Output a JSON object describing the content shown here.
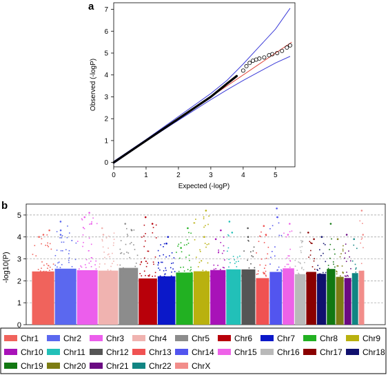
{
  "panel_a": {
    "label": "a"
  },
  "panel_b": {
    "label": "b"
  },
  "chart_data": [
    {
      "type": "scatter",
      "panel": "a",
      "xlabel": "Expected (-logP)",
      "ylabel": "Observed (-logP)",
      "xlim": [
        0,
        5.6
      ],
      "ylim": [
        -0.2,
        7.3
      ],
      "xticks": [
        "0",
        "1",
        "2",
        "3",
        "4",
        "5"
      ],
      "yticks": [
        "0",
        "1",
        "2",
        "3",
        "4",
        "5",
        "6",
        "7"
      ],
      "qq_points": [
        [
          0.0,
          0.0
        ],
        [
          0.5,
          0.5
        ],
        [
          1.0,
          1.0
        ],
        [
          1.5,
          1.5
        ],
        [
          2.0,
          2.0
        ],
        [
          2.5,
          2.5
        ],
        [
          3.0,
          3.0
        ],
        [
          3.5,
          3.6
        ],
        [
          3.8,
          3.95
        ],
        [
          4.0,
          4.2
        ],
        [
          4.1,
          4.4
        ],
        [
          4.2,
          4.55
        ],
        [
          4.3,
          4.65
        ],
        [
          4.4,
          4.7
        ],
        [
          4.5,
          4.75
        ],
        [
          4.65,
          4.8
        ],
        [
          4.8,
          4.9
        ],
        [
          4.9,
          4.95
        ],
        [
          5.05,
          5.0
        ],
        [
          5.2,
          5.1
        ],
        [
          5.35,
          5.25
        ],
        [
          5.45,
          5.35
        ]
      ],
      "expected_line": [
        [
          0,
          0
        ],
        [
          5.5,
          5.5
        ]
      ],
      "upper_band": [
        [
          0,
          0.05
        ],
        [
          1,
          1.05
        ],
        [
          2,
          2.1
        ],
        [
          3,
          3.15
        ],
        [
          3.5,
          3.75
        ],
        [
          4,
          4.5
        ],
        [
          4.5,
          5.3
        ],
        [
          5,
          6.1
        ],
        [
          5.45,
          7.05
        ]
      ],
      "lower_band": [
        [
          0,
          -0.05
        ],
        [
          1,
          0.97
        ],
        [
          2,
          1.93
        ],
        [
          3,
          2.87
        ],
        [
          3.5,
          3.32
        ],
        [
          4,
          3.75
        ],
        [
          4.5,
          4.15
        ],
        [
          5,
          4.55
        ],
        [
          5.45,
          4.85
        ]
      ],
      "colors": {
        "points": "#000000",
        "expected": "#e0463a",
        "band": "#3a3ad8"
      }
    },
    {
      "type": "scatter",
      "panel": "b",
      "subtype": "manhattan",
      "ylabel": "-log10(P)",
      "ylim": [
        0,
        5.5
      ],
      "yticks": [
        "0",
        "1",
        "2",
        "3",
        "4",
        "5"
      ],
      "grid": true,
      "chromosomes": [
        {
          "name": "Chr1",
          "color": "#f0635c",
          "max": 4.3,
          "hits": [
            4.3,
            4.0,
            4.1
          ]
        },
        {
          "name": "Chr2",
          "color": "#5b68ef",
          "max": 4.7,
          "hits": [
            4.3,
            4.7,
            4.1
          ]
        },
        {
          "name": "Chr3",
          "color": "#ec5eec",
          "max": 5.1,
          "hits": [
            5.1,
            4.9,
            4.6
          ]
        },
        {
          "name": "Chr4",
          "color": "#f0b3b0",
          "max": 4.4,
          "hits": [
            4.4,
            4.1
          ]
        },
        {
          "name": "Chr5",
          "color": "#8c8c8c",
          "max": 4.6,
          "hits": [
            4.6,
            4.3
          ]
        },
        {
          "name": "Chr6",
          "color": "#b8000a",
          "max": 4.9,
          "hits": [
            4.9,
            4.6
          ]
        },
        {
          "name": "Chr7",
          "color": "#0b18c9",
          "max": 4.0,
          "hits": [
            4.0,
            3.7
          ]
        },
        {
          "name": "Chr8",
          "color": "#22b122",
          "max": 4.4,
          "hits": [
            4.4,
            3.5
          ]
        },
        {
          "name": "Chr9",
          "color": "#b9b10f",
          "max": 5.2,
          "hits": [
            5.2,
            4.0
          ]
        },
        {
          "name": "Chr10",
          "color": "#a812b8",
          "max": 4.3,
          "hits": [
            4.3,
            3.9
          ]
        },
        {
          "name": "Chr11",
          "color": "#22c0b8",
          "max": 4.7,
          "hits": [
            4.7,
            4.2
          ]
        },
        {
          "name": "Chr12",
          "color": "#555555",
          "max": 4.4,
          "hits": [
            4.4,
            4.0
          ]
        },
        {
          "name": "Chr13",
          "color": "#f05252",
          "max": 4.5,
          "hits": [
            4.5,
            4.1
          ]
        },
        {
          "name": "Chr14",
          "color": "#5255ef",
          "max": 5.3,
          "hits": [
            5.3,
            4.9
          ]
        },
        {
          "name": "Chr15",
          "color": "#ee62e8",
          "max": 4.6,
          "hits": [
            4.6,
            4.1
          ]
        },
        {
          "name": "Chr16",
          "color": "#b9b9b9",
          "max": 4.2,
          "hits": [
            4.2,
            3.8
          ]
        },
        {
          "name": "Chr17",
          "color": "#8a0000",
          "max": 4.2,
          "hits": [
            4.2,
            3.9
          ]
        },
        {
          "name": "Chr18",
          "color": "#10106e",
          "max": 4.0,
          "hits": [
            4.0
          ]
        },
        {
          "name": "Chr19",
          "color": "#127812",
          "max": 4.6,
          "hits": [
            4.6
          ]
        },
        {
          "name": "Chr20",
          "color": "#7c7c13",
          "max": 3.9,
          "hits": [
            3.9
          ]
        },
        {
          "name": "Chr21",
          "color": "#6a0a82",
          "max": 4.1,
          "hits": [
            4.1
          ]
        },
        {
          "name": "Chr22",
          "color": "#118583",
          "max": 3.9,
          "hits": [
            3.9
          ]
        },
        {
          "name": "ChrX",
          "color": "#f28d8a",
          "max": 5.2,
          "hits": [
            5.2,
            4.1
          ]
        }
      ]
    }
  ]
}
